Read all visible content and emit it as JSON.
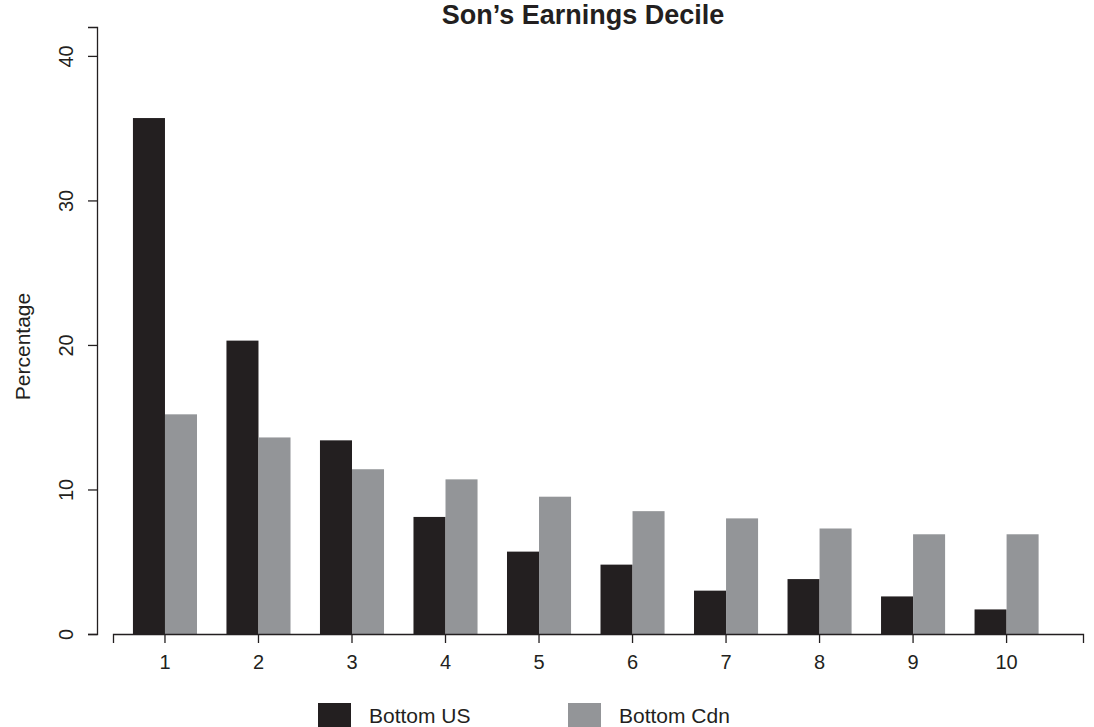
{
  "chart_data": {
    "type": "bar",
    "title": "Son’s Earnings Decile",
    "y_label": "Percentage",
    "categories": [
      "1",
      "2",
      "3",
      "4",
      "5",
      "6",
      "7",
      "8",
      "9",
      "10"
    ],
    "series": [
      {
        "name": "Bottom US",
        "color": "#231f20",
        "values": [
          35.7,
          20.3,
          13.4,
          8.1,
          5.7,
          4.8,
          3.0,
          3.8,
          2.6,
          1.7
        ]
      },
      {
        "name": "Bottom Cdn",
        "color": "#939598",
        "values": [
          15.2,
          13.6,
          11.4,
          10.7,
          9.5,
          8.5,
          8.0,
          7.3,
          6.9,
          6.9
        ]
      }
    ],
    "ylim": [
      0,
      42
    ],
    "yticks": [
      0,
      10,
      20,
      30,
      40
    ],
    "grid": false,
    "legend": "bottom"
  }
}
